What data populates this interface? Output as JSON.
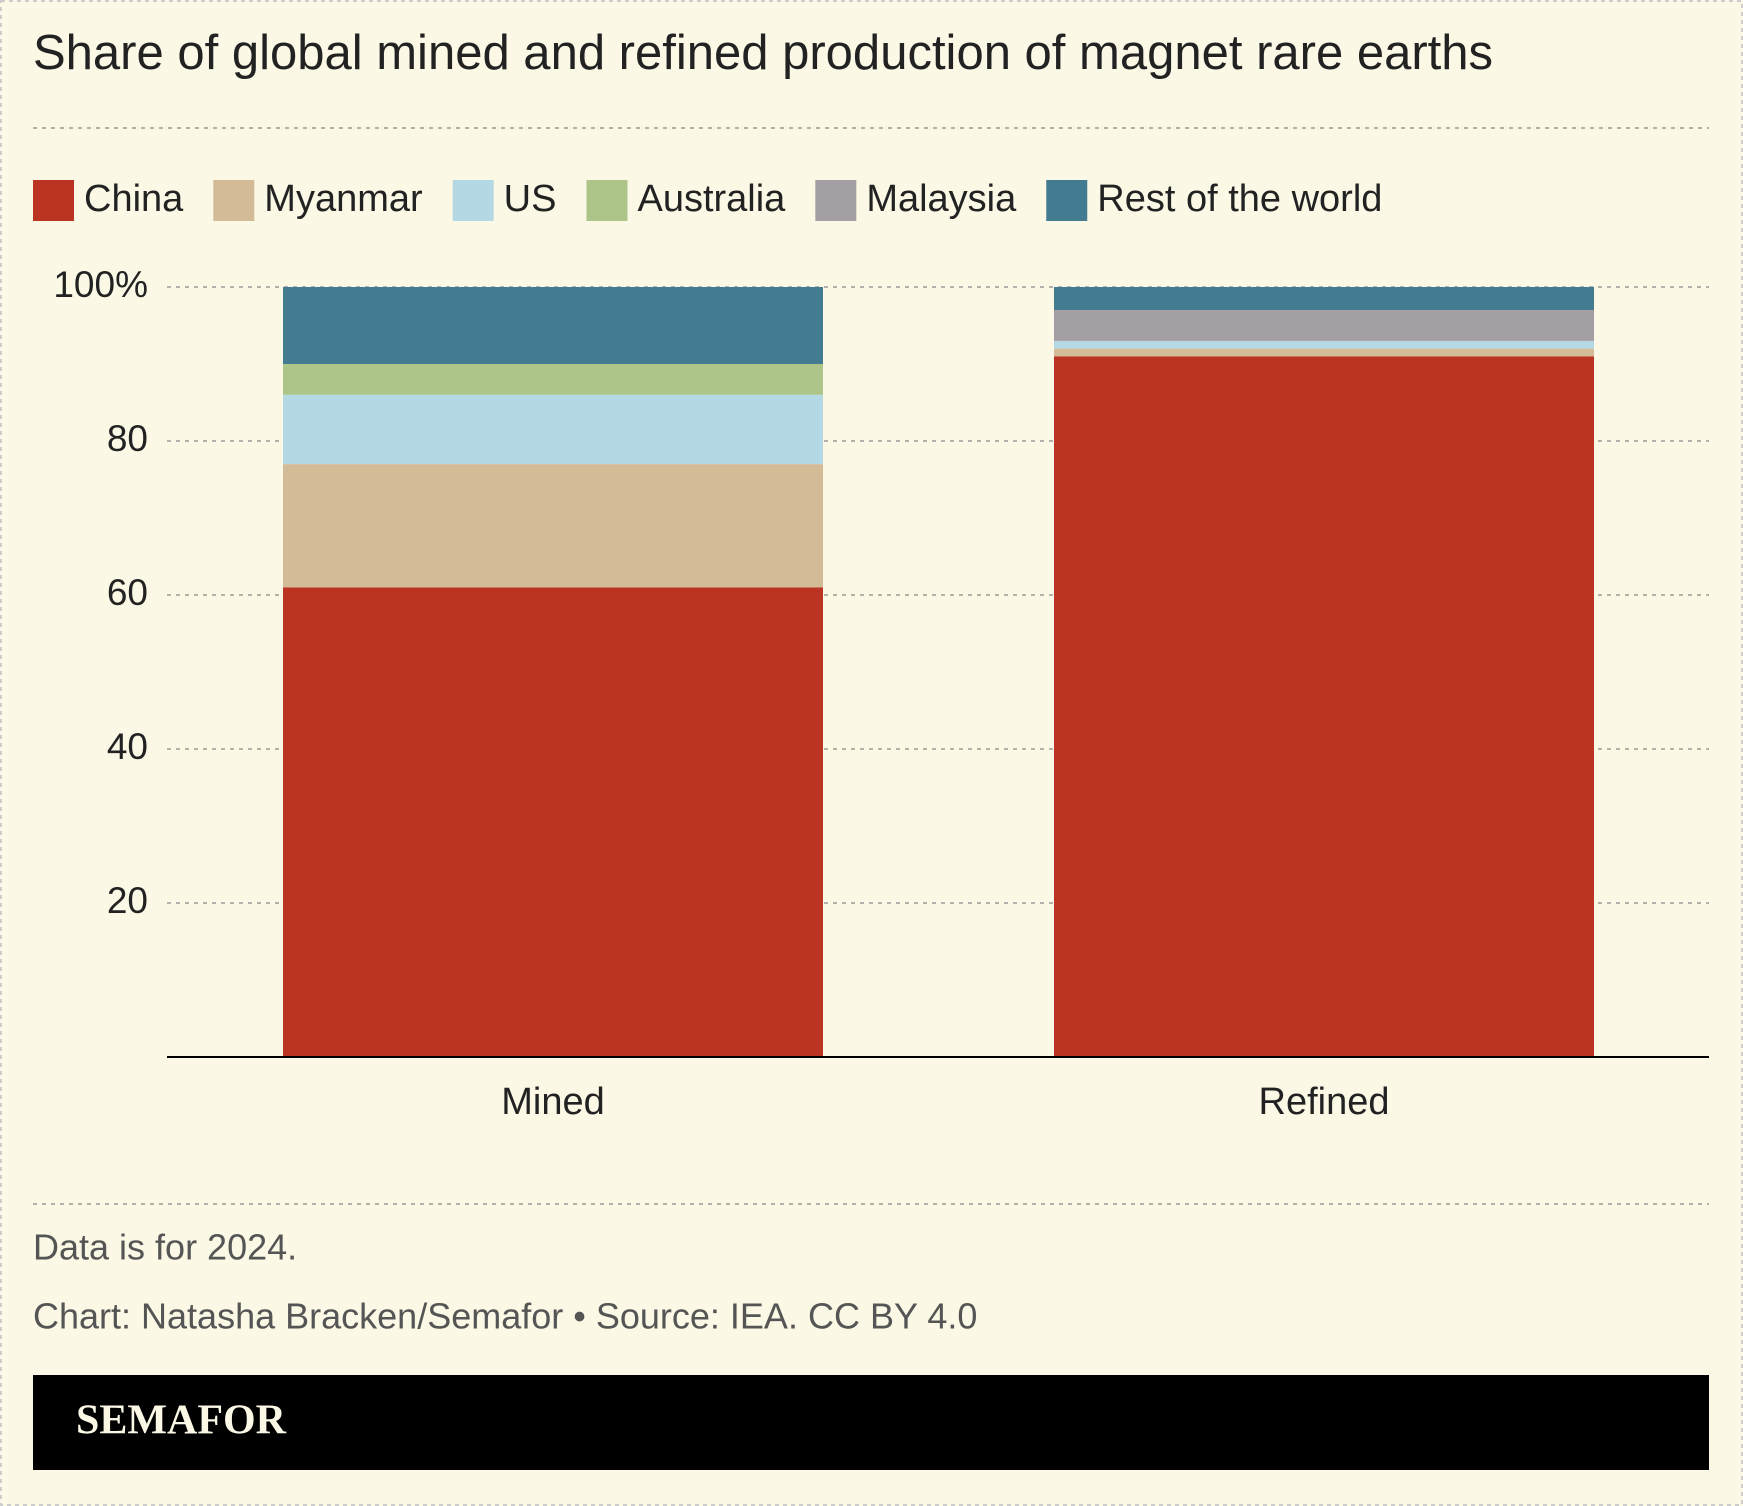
{
  "chart_data": {
    "type": "stacked_bar",
    "title": "Share of global mined and refined production of magnet rare earths",
    "categories": [
      "Mined",
      "Refined"
    ],
    "series": [
      {
        "name": "China",
        "color": "#bb3322",
        "values": [
          61,
          91
        ]
      },
      {
        "name": "Myanmar",
        "color": "#d4bb98",
        "values": [
          16,
          1
        ]
      },
      {
        "name": "US",
        "color": "#b5d9e4",
        "values": [
          9,
          1
        ]
      },
      {
        "name": "Australia",
        "color": "#adc589",
        "values": [
          4,
          0
        ]
      },
      {
        "name": "Malaysia",
        "color": "#a49fa5",
        "values": [
          0,
          4
        ]
      },
      {
        "name": "Rest of the world",
        "color": "#437b90",
        "values": [
          10,
          3
        ]
      }
    ],
    "ylim": [
      0,
      100
    ],
    "yticks": [
      20,
      40,
      60,
      80,
      {
        "value": 100,
        "label": "100%"
      }
    ],
    "grid": true,
    "notes": [
      "Data is for 2024.",
      "Chart: Natasha Bracken/Semafor • Source: IEA. CC BY 4.0"
    ],
    "brand": "SEMAFOR"
  }
}
